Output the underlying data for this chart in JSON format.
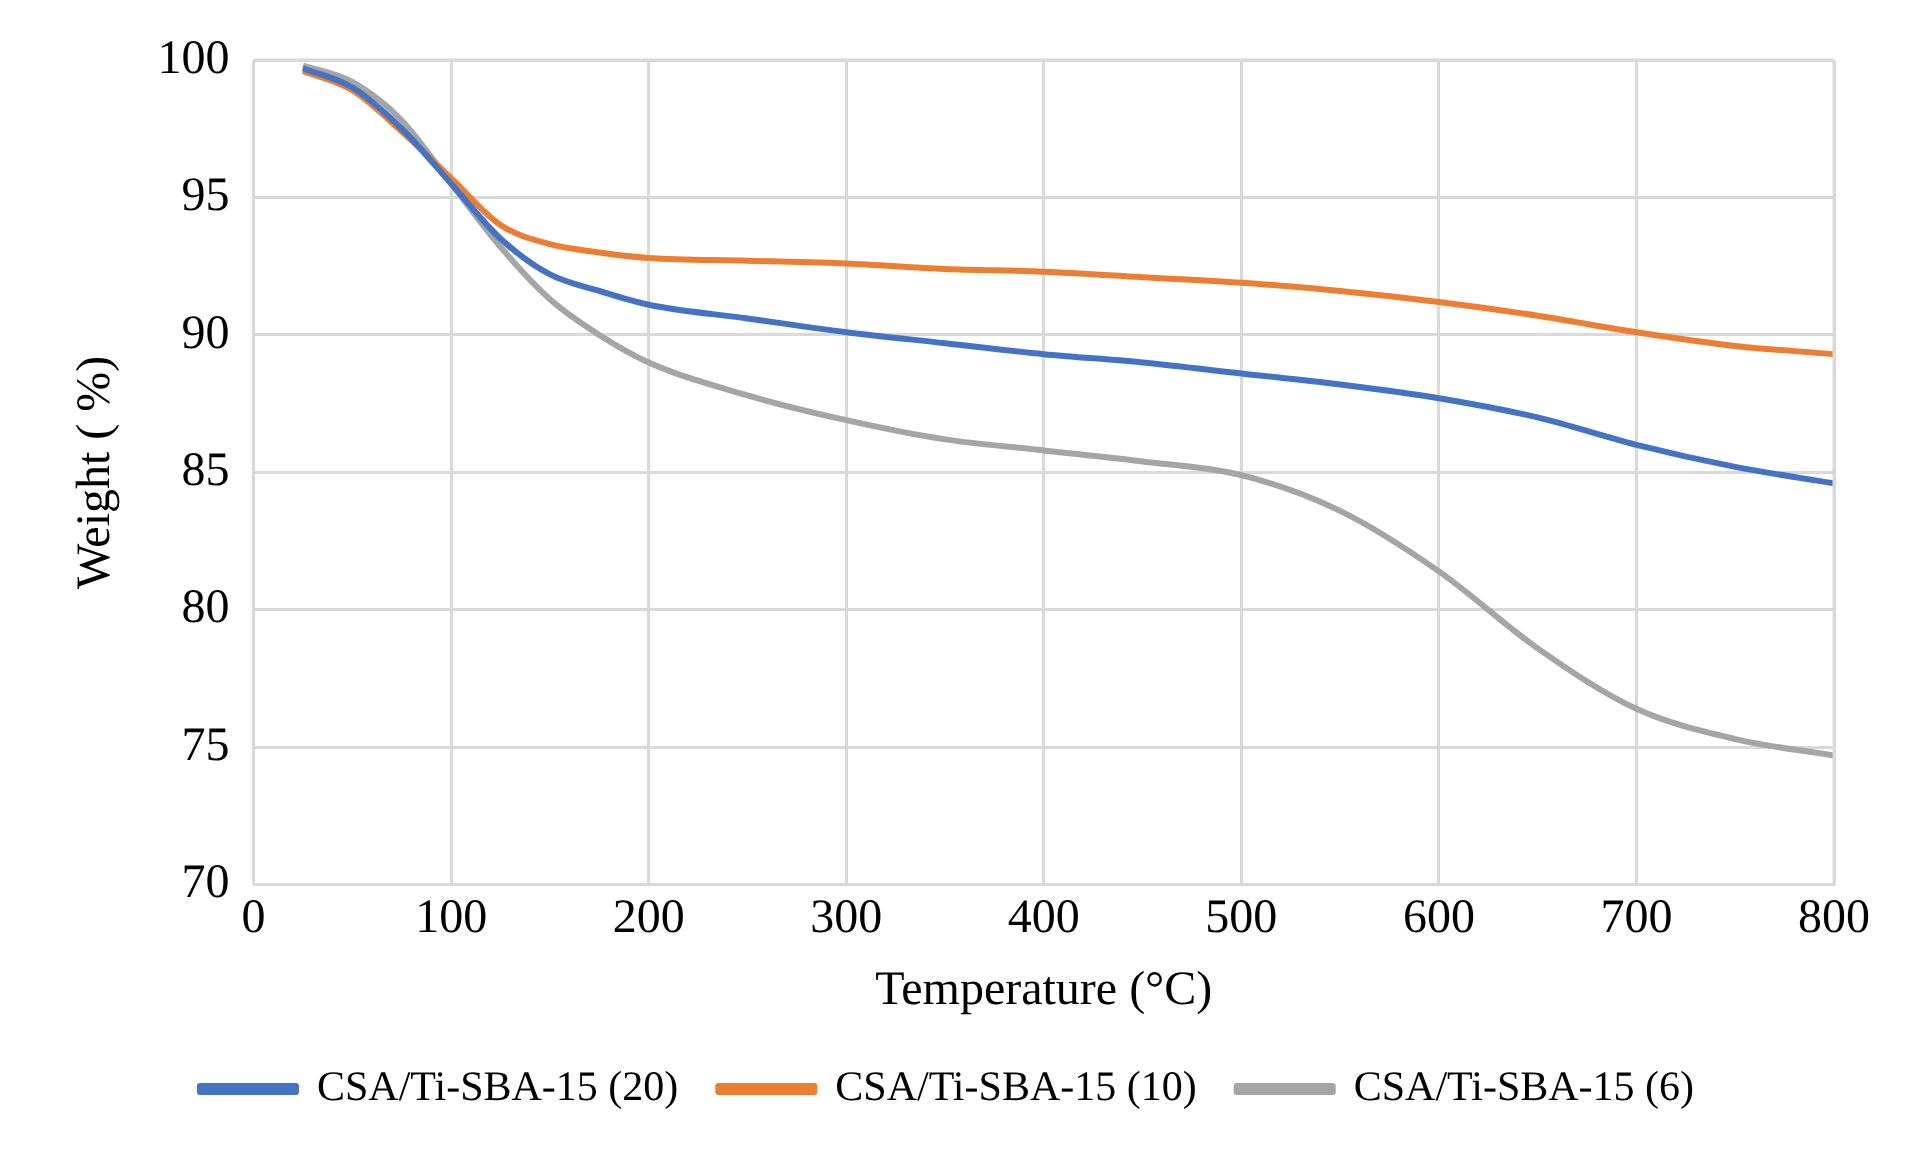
{
  "chart_data": {
    "type": "line",
    "xlabel": "Temperature (°C)",
    "ylabel": "Weight ( %)",
    "x": [
      25,
      50,
      75,
      100,
      125,
      150,
      175,
      200,
      250,
      300,
      350,
      400,
      450,
      500,
      550,
      600,
      650,
      700,
      750,
      800
    ],
    "series": [
      {
        "name": "CSA/Ti-SBA-15 (20)",
        "color": "#4472c4",
        "values": [
          99.7,
          99.0,
          97.5,
          95.5,
          93.5,
          92.2,
          91.6,
          91.1,
          90.6,
          90.1,
          89.7,
          89.3,
          89.0,
          88.6,
          88.2,
          87.7,
          87.0,
          86.0,
          85.2,
          84.6
        ]
      },
      {
        "name": "CSA/Ti-SBA-15 (10)",
        "color": "#ed7d31",
        "values": [
          99.6,
          98.9,
          97.4,
          95.7,
          94.0,
          93.3,
          93.0,
          92.8,
          92.7,
          92.6,
          92.4,
          92.3,
          92.1,
          91.9,
          91.6,
          91.2,
          90.7,
          90.1,
          89.6,
          89.3
        ]
      },
      {
        "name": "CSA/Ti-SBA-15 (6)",
        "color": "#a5a5a5",
        "values": [
          99.8,
          99.2,
          97.8,
          95.5,
          93.2,
          91.3,
          90.0,
          89.0,
          87.8,
          86.9,
          86.2,
          85.8,
          85.4,
          84.9,
          83.6,
          81.4,
          78.6,
          76.4,
          75.3,
          74.7
        ]
      }
    ],
    "xlim": [
      0,
      800
    ],
    "xticks": [
      0,
      100,
      200,
      300,
      400,
      500,
      600,
      700,
      800
    ],
    "ylim": [
      70,
      100
    ],
    "yticks": [
      70,
      75,
      80,
      85,
      90,
      95,
      100
    ],
    "grid": true,
    "legend": "bottom",
    "marker": "none",
    "line_style": "solid"
  }
}
